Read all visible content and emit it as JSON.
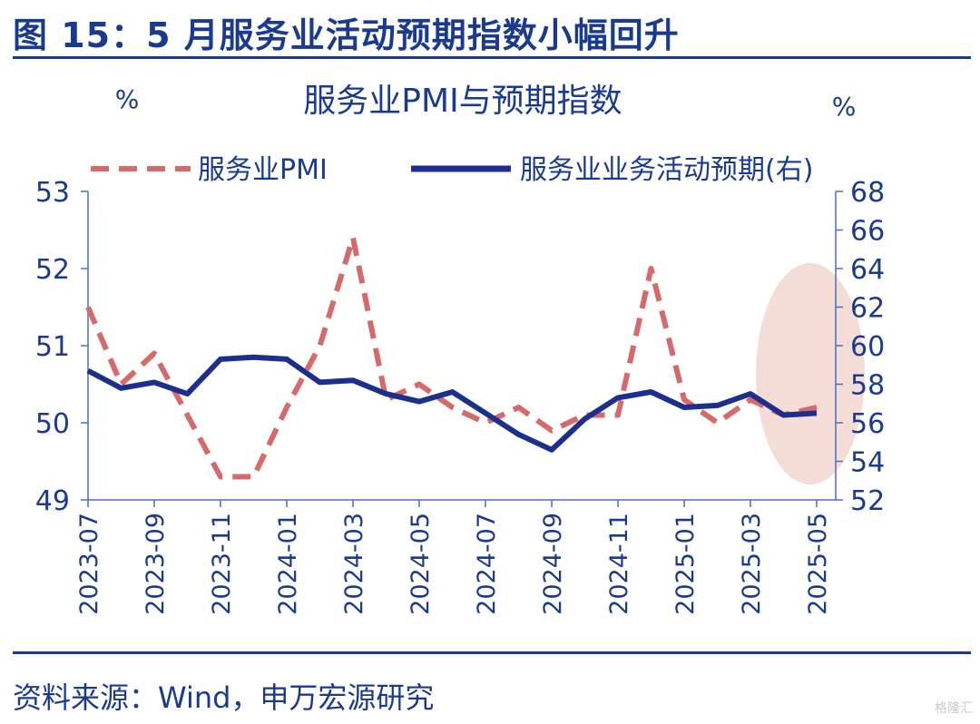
{
  "figure": {
    "title": "图 15：5 月服务业活动预期指数小幅回升",
    "source": "资料来源：Wind，申万宏源研究",
    "watermark": "格隆汇"
  },
  "colors": {
    "pmi": "#d66a6a",
    "expectation": "#1c2f8f",
    "axis": "#4a6fc0",
    "text": "#1a3a8f",
    "highlight": "#f2d6d0"
  },
  "chart_data": {
    "type": "line",
    "title": "服务业PMI与预期指数",
    "yunit_left": "%",
    "yunit_right": "%",
    "x": [
      "2023-07",
      "2023-08",
      "2023-09",
      "2023-10",
      "2023-11",
      "2023-12",
      "2024-01",
      "2024-02",
      "2024-03",
      "2024-04",
      "2024-05",
      "2024-06",
      "2024-07",
      "2024-08",
      "2024-09",
      "2024-10",
      "2024-11",
      "2024-12",
      "2025-01",
      "2025-02",
      "2025-03",
      "2025-04",
      "2025-05"
    ],
    "xticks": [
      "2023-07",
      "2023-09",
      "2023-11",
      "2024-01",
      "2024-03",
      "2024-05",
      "2024-07",
      "2024-09",
      "2024-11",
      "2025-01",
      "2025-03",
      "2025-05"
    ],
    "ylim_left": [
      49,
      53
    ],
    "yticks_left": [
      49,
      50,
      51,
      52,
      53
    ],
    "ylim_right": [
      52,
      68
    ],
    "yticks_right": [
      52,
      54,
      56,
      58,
      60,
      62,
      64,
      66,
      68
    ],
    "legend_position": "top",
    "series": [
      {
        "name": "服务业PMI",
        "axis": "left",
        "style": "dashed",
        "values": [
          51.5,
          50.5,
          50.9,
          50.1,
          49.3,
          49.3,
          50.2,
          51.0,
          52.4,
          50.3,
          50.5,
          50.2,
          50.0,
          50.2,
          49.9,
          50.1,
          50.1,
          52.0,
          50.3,
          50.0,
          50.3,
          50.1,
          50.2
        ]
      },
      {
        "name": "服务业业务活动预期(右)",
        "axis": "right",
        "style": "solid",
        "values": [
          58.7,
          57.8,
          58.1,
          57.5,
          59.3,
          59.4,
          59.3,
          58.1,
          58.2,
          57.5,
          57.1,
          57.6,
          56.5,
          55.4,
          54.6,
          56.2,
          57.3,
          57.6,
          56.8,
          56.9,
          57.5,
          56.4,
          56.5
        ]
      }
    ]
  }
}
